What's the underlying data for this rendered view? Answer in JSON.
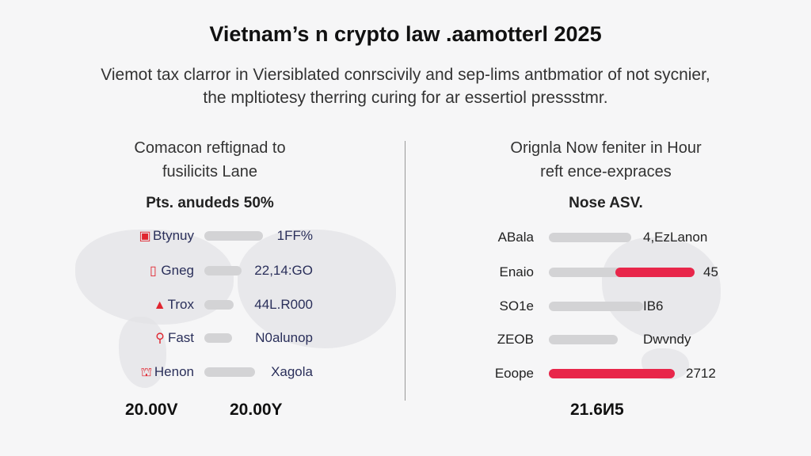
{
  "header": {
    "title": "Vietnam’s n crypto law .aamotterl 2025",
    "subtitle_line1": "Viemot tax clarror in Viersiblated conrscivily and sep-lims antbmatior of not sycnier,",
    "subtitle_line2": "the mpltiotesy therring curing for ar essertiol pressstmr."
  },
  "left": {
    "heading_line1": "Comacon reftignad to",
    "heading_line2": "fusilicits Lane",
    "subheading": "Pts. anudeds 50%",
    "rows": [
      {
        "icon": "badge-icon",
        "glyph": "▣",
        "label": "Btynuy",
        "value": "1FF%"
      },
      {
        "icon": "document-icon",
        "glyph": "▯",
        "label": "Gneg",
        "value": "22,14:GO"
      },
      {
        "icon": "warning-icon",
        "glyph": "▲",
        "label": "Trox",
        "value": "44L.R000"
      },
      {
        "icon": "location-pin-icon",
        "glyph": "⚲",
        "label": "Fast",
        "value": "N0alunop"
      },
      {
        "icon": "bank-icon",
        "glyph": "⛫",
        "label": "Henon",
        "value": "Xagola"
      }
    ],
    "footer1": "20.00V",
    "footer2": "20.00Y"
  },
  "right": {
    "heading_line1": "Orignla Now feniter in Hour",
    "heading_line2": "reft ence-expraces",
    "subheading": "Nose ASV.",
    "rows": [
      {
        "label": "ABala",
        "value": "4,EzLanon"
      },
      {
        "label": "Enaio",
        "value": "45"
      },
      {
        "label": "SO1e",
        "value": "IB6"
      },
      {
        "label": "ZEOB",
        "value": "Dwvndy"
      },
      {
        "label": "Eoope",
        "value": "2712"
      }
    ],
    "footer": "21.6И5"
  },
  "colors": {
    "accent": "#e8264a",
    "bar": "#d3d3d5"
  }
}
